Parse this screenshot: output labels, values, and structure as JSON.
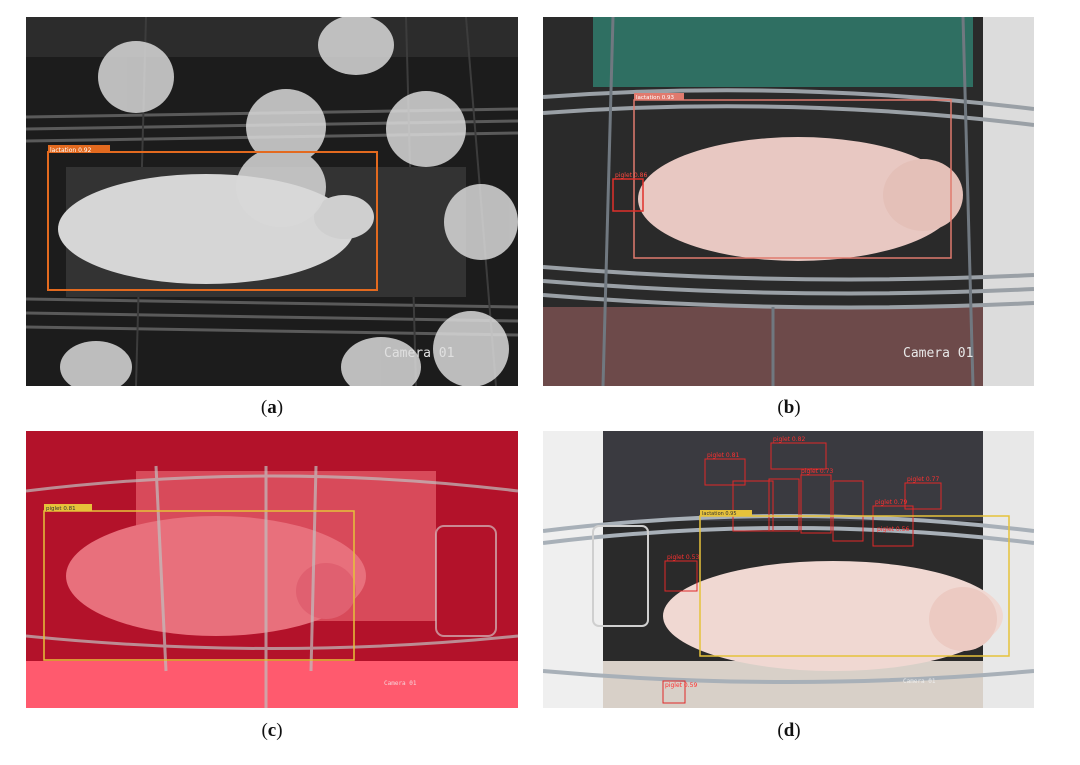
{
  "panels": [
    {
      "caption": "a",
      "camera": "Camera 01",
      "boxes": [
        {
          "label": "lactation 0.92"
        }
      ]
    },
    {
      "caption": "b",
      "camera": "Camera 01",
      "boxes": [
        {
          "label": "lactation 0.93"
        },
        {
          "label": "piglet 0.86"
        }
      ]
    },
    {
      "caption": "c",
      "camera": "Camera 01",
      "boxes": [
        {
          "label": "piglet 0.81"
        }
      ]
    },
    {
      "caption": "d",
      "camera": "Camera 01",
      "boxes": [
        {
          "label": "piglet 0.81"
        },
        {
          "label": "piglet 0.82"
        },
        {
          "label": "piglet 0.73"
        },
        {
          "label": "piglet 0.77"
        },
        {
          "label": "piglet 0.79"
        },
        {
          "label": "piglet 0.56"
        },
        {
          "label": "piglet 0.53"
        },
        {
          "label": "piglet 0.59"
        },
        {
          "label": "lactation 0.95"
        }
      ]
    }
  ]
}
